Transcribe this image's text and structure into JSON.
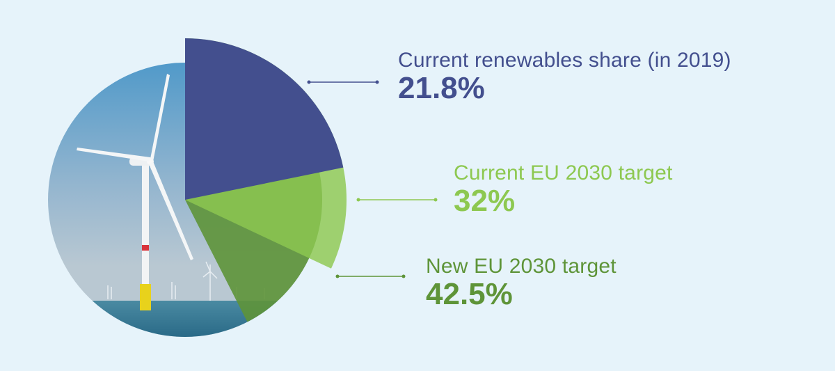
{
  "chart_data": {
    "type": "pie",
    "background_image": "offshore-wind-turbine-photo",
    "series": [
      {
        "label": "Current renewables share (in 2019)",
        "value": 21.8,
        "value_label": "21.8%",
        "color": "#434f8e"
      },
      {
        "label": "Current EU 2030 target",
        "value": 32,
        "value_label": "32%",
        "color": "#8dc850"
      },
      {
        "label": "New EU 2030 target",
        "value": 42.5,
        "value_label": "42.5%",
        "color": "#5e9438"
      }
    ]
  }
}
